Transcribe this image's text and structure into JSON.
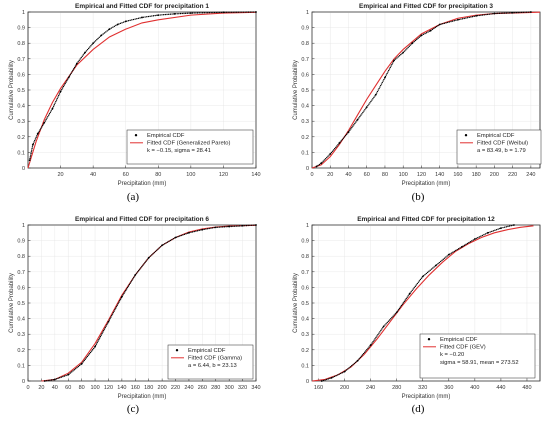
{
  "chart_data": [
    {
      "type": "line",
      "title": "Empirical and Fitted CDF for precipitation 1",
      "xlabel": "Precipitation (mm)",
      "ylabel": "Cumulative Probability",
      "xlim": [
        0,
        140
      ],
      "ylim": [
        0,
        1
      ],
      "xticks": [
        "20",
        "40",
        "60",
        "80",
        "100",
        "120",
        "140"
      ],
      "yticks": [
        "0",
        "0.1",
        "0.2",
        "0.3",
        "0.4",
        "0.5",
        "0.6",
        "0.7",
        "0.8",
        "0.9",
        "1"
      ],
      "grid": true,
      "legend_position": "bottom-right",
      "caption": "(a)",
      "legend": {
        "empirical": "Empirical CDF",
        "fitted": "Fitted CDF (Generalized Pareto)",
        "params": "k = −0.15, sigma = 28.41"
      },
      "series": [
        {
          "name": "Empirical CDF",
          "style": "dots",
          "color": "#000000",
          "x": [
            1,
            3,
            6,
            10,
            15,
            20,
            25,
            30,
            35,
            40,
            45,
            50,
            55,
            60,
            70,
            80,
            90,
            100,
            120,
            140
          ],
          "y": [
            0.05,
            0.15,
            0.22,
            0.29,
            0.38,
            0.49,
            0.58,
            0.67,
            0.74,
            0.8,
            0.85,
            0.89,
            0.92,
            0.94,
            0.965,
            0.98,
            0.988,
            0.993,
            0.998,
            1.0
          ]
        },
        {
          "name": "Fitted CDF (Generalized Pareto)",
          "style": "line",
          "color": "#e03030",
          "x": [
            0,
            5,
            10,
            15,
            20,
            30,
            40,
            50,
            60,
            70,
            80,
            100,
            120,
            140
          ],
          "y": [
            0,
            0.17,
            0.31,
            0.42,
            0.51,
            0.66,
            0.76,
            0.84,
            0.89,
            0.93,
            0.95,
            0.98,
            0.993,
            0.998
          ]
        }
      ]
    },
    {
      "type": "line",
      "title": "Empirical and Fitted CDF for precipitation 3",
      "xlabel": "Precipitation (mm)",
      "ylabel": "Cumulative Probability",
      "xlim": [
        0,
        250
      ],
      "ylim": [
        0,
        1
      ],
      "xticks": [
        "0",
        "20",
        "40",
        "60",
        "80",
        "100",
        "120",
        "140",
        "160",
        "180",
        "200",
        "220",
        "240"
      ],
      "yticks": [
        "0",
        "0.1",
        "0.2",
        "0.3",
        "0.4",
        "0.5",
        "0.6",
        "0.7",
        "0.8",
        "0.9",
        "1"
      ],
      "grid": true,
      "legend_position": "bottom-right",
      "caption": "(b)",
      "legend": {
        "empirical": "Empirical CDF",
        "fitted": "Fitted CDF (Weibul)",
        "params": "a = 83.49, b = 1.79"
      },
      "series": [
        {
          "name": "Empirical CDF",
          "style": "dots",
          "color": "#000000",
          "x": [
            5,
            10,
            20,
            30,
            40,
            50,
            60,
            70,
            80,
            90,
            100,
            110,
            120,
            130,
            140,
            160,
            180,
            200,
            220,
            240
          ],
          "y": [
            0.01,
            0.03,
            0.09,
            0.16,
            0.23,
            0.31,
            0.39,
            0.47,
            0.58,
            0.69,
            0.74,
            0.8,
            0.85,
            0.88,
            0.92,
            0.95,
            0.975,
            0.99,
            0.995,
            1.0
          ]
        },
        {
          "name": "Fitted CDF (Weibul)",
          "style": "line",
          "color": "#e03030",
          "x": [
            0,
            10,
            20,
            30,
            40,
            50,
            60,
            70,
            80,
            90,
            100,
            120,
            140,
            160,
            180,
            200,
            250
          ],
          "y": [
            0,
            0.02,
            0.073,
            0.15,
            0.24,
            0.34,
            0.44,
            0.53,
            0.62,
            0.7,
            0.76,
            0.86,
            0.92,
            0.96,
            0.98,
            0.99,
            0.999
          ]
        }
      ]
    },
    {
      "type": "line",
      "title": "Empirical and Fitted CDF for precipitation 6",
      "xlabel": "Precipitation (mm)",
      "ylabel": "Cumulative Probability",
      "xlim": [
        0,
        340
      ],
      "ylim": [
        0,
        1
      ],
      "xticks": [
        "0",
        "20",
        "40",
        "60",
        "80",
        "100",
        "120",
        "140",
        "160",
        "180",
        "200",
        "220",
        "240",
        "260",
        "280",
        "300",
        "320",
        "340"
      ],
      "yticks": [
        "0",
        "0.1",
        "0.2",
        "0.3",
        "0.4",
        "0.5",
        "0.6",
        "0.7",
        "0.8",
        "0.9",
        "1"
      ],
      "grid": true,
      "legend_position": "bottom-right",
      "caption": "(c)",
      "legend": {
        "empirical": "Empirical CDF",
        "fitted": "Fitted CDF (Gamma)",
        "params": "a = 6.44, b = 23.13"
      },
      "series": [
        {
          "name": "Empirical CDF",
          "style": "dots",
          "color": "#000000",
          "x": [
            25,
            40,
            60,
            80,
            100,
            120,
            140,
            160,
            180,
            200,
            220,
            240,
            260,
            280,
            300,
            320,
            340
          ],
          "y": [
            0.0,
            0.01,
            0.04,
            0.11,
            0.22,
            0.38,
            0.54,
            0.68,
            0.79,
            0.87,
            0.92,
            0.95,
            0.97,
            0.985,
            0.99,
            0.995,
            1.0
          ]
        },
        {
          "name": "Fitted CDF (Gamma)",
          "style": "line",
          "color": "#e03030",
          "x": [
            20,
            40,
            60,
            80,
            100,
            120,
            140,
            160,
            180,
            200,
            220,
            240,
            260,
            280,
            300,
            340
          ],
          "y": [
            0.0,
            0.01,
            0.05,
            0.12,
            0.24,
            0.39,
            0.55,
            0.68,
            0.79,
            0.87,
            0.92,
            0.955,
            0.975,
            0.987,
            0.993,
            0.998
          ]
        }
      ]
    },
    {
      "type": "line",
      "title": "Empirical and Fitted CDF for precipitation 12",
      "xlabel": "Precipitation (mm)",
      "ylabel": "Cumulative Probability",
      "xlim": [
        150,
        500
      ],
      "ylim": [
        0,
        1
      ],
      "xticks": [
        "160",
        "200",
        "240",
        "280",
        "320",
        "360",
        "400",
        "440",
        "480"
      ],
      "yticks": [
        "0",
        "0.1",
        "0.2",
        "0.3",
        "0.4",
        "0.5",
        "0.6",
        "0.7",
        "0.8",
        "0.9",
        "1"
      ],
      "grid": true,
      "legend_position": "bottom-left",
      "caption": "(d)",
      "legend": {
        "empirical": "Empirical CDF",
        "fitted": "Fitted CDF (GEV)",
        "params_k": "k = −0.20",
        "params": "sigma = 58.91, mean = 273.52"
      },
      "series": [
        {
          "name": "Empirical CDF",
          "style": "dots",
          "color": "#000000",
          "x": [
            165,
            180,
            200,
            220,
            240,
            260,
            280,
            300,
            320,
            340,
            360,
            380,
            400,
            420,
            440,
            460
          ],
          "y": [
            0.0,
            0.02,
            0.06,
            0.13,
            0.23,
            0.35,
            0.44,
            0.56,
            0.67,
            0.74,
            0.81,
            0.86,
            0.91,
            0.95,
            0.98,
            1.0
          ]
        },
        {
          "name": "Fitted CDF (GEV)",
          "style": "line",
          "color": "#e03030",
          "x": [
            150,
            170,
            190,
            210,
            230,
            250,
            270,
            290,
            310,
            330,
            350,
            370,
            390,
            410,
            430,
            450,
            470,
            490
          ],
          "y": [
            0.0,
            0.01,
            0.04,
            0.09,
            0.17,
            0.27,
            0.38,
            0.49,
            0.59,
            0.68,
            0.76,
            0.83,
            0.88,
            0.92,
            0.95,
            0.97,
            0.985,
            0.995
          ]
        }
      ]
    }
  ]
}
